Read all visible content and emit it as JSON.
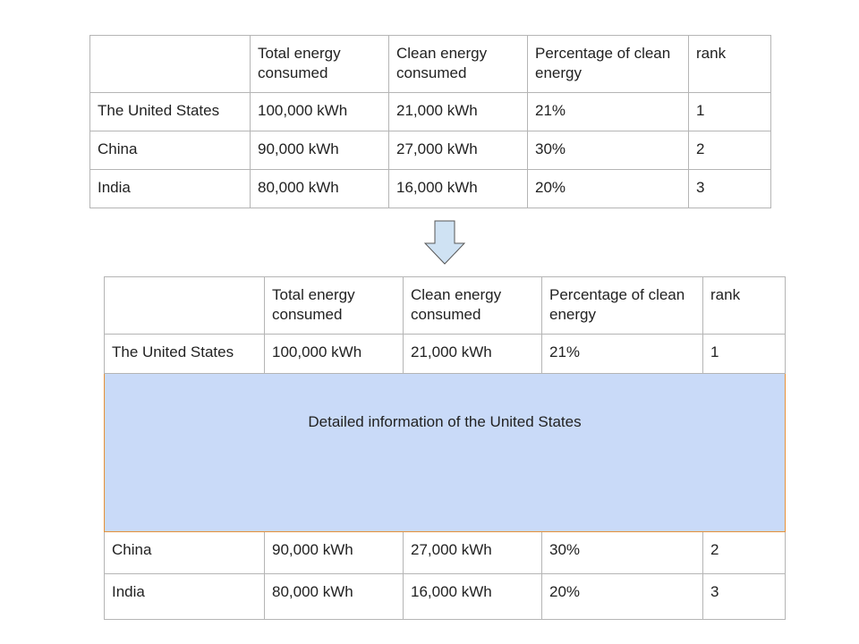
{
  "columns": [
    "",
    "Total energy consumed",
    "Clean energy consumed",
    "Percentage of clean energy",
    "rank"
  ],
  "rows": [
    {
      "country": "The United States",
      "total": "100,000 kWh",
      "clean": "21,000 kWh",
      "percent": "21%",
      "rank": "1"
    },
    {
      "country": "China",
      "total": "90,000 kWh",
      "clean": "27,000 kWh",
      "percent": "30%",
      "rank": "2"
    },
    {
      "country": "India",
      "total": "80,000 kWh",
      "clean": "16,000 kWh",
      "percent": "20%",
      "rank": "3"
    }
  ],
  "detail": {
    "text": "Detailed information of the United States",
    "fill_color": "#c9daf8",
    "border_color": "#e69138"
  },
  "arrow": {
    "icon": "down-arrow-icon",
    "fill_color": "#cfe2f3",
    "stroke_color": "#555555"
  }
}
